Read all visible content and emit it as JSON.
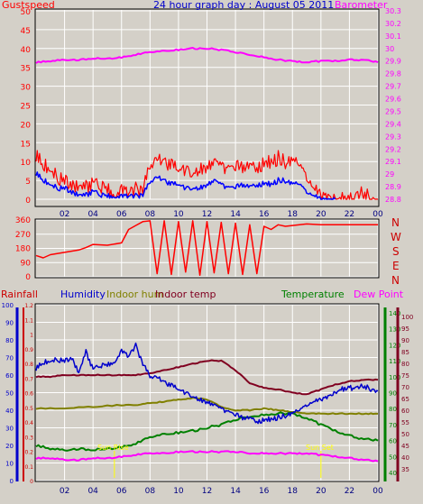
{
  "colors": {
    "background": "#d4d0c8",
    "panel_border": "#000000",
    "grid": "#ffffff",
    "gust": "#ff0000",
    "wind_avg": "#0000ff",
    "barometer": "#ff00ff",
    "direction": "#ff0000",
    "rainfall": "#cc0000",
    "humidity": "#0000cc",
    "indoor_hum": "#808000",
    "indoor_temp": "#800020",
    "temperature": "#008000",
    "dew_point": "#ff00ff",
    "sun": "#ffff00"
  },
  "chart_data": [
    {
      "type": "line",
      "panel": "wind-barometer",
      "title": "24 hour graph day : August 05 2011",
      "left_label": "Gustspeed",
      "right_label": "Barometer",
      "x_ticks": [
        "02",
        "04",
        "06",
        "08",
        "10",
        "12",
        "14",
        "16",
        "18",
        "20",
        "22",
        "00"
      ],
      "left_ticks": [
        "0",
        "5",
        "10",
        "15",
        "20",
        "25",
        "30",
        "35",
        "40",
        "45",
        "50"
      ],
      "right_ticks": [
        "28.8",
        "28.9",
        "29",
        "29.1",
        "29.2",
        "29.3",
        "29.4",
        "29.5",
        "29.6",
        "29.7",
        "29.8",
        "29.9",
        "30",
        "30.1",
        "30.2",
        "30.3"
      ],
      "ylim_left": [
        0,
        50
      ],
      "ylim_right": [
        28.8,
        30.3
      ],
      "series": [
        {
          "key": "gust",
          "axis": "left",
          "x": [
            0,
            0.5,
            1,
            1.5,
            2,
            2.5,
            3,
            3.5,
            4,
            4.5,
            5,
            5.5,
            6,
            6.5,
            7,
            7.5,
            8,
            8.5,
            9,
            9.5,
            10,
            10.5,
            11,
            11.5,
            12,
            12.5,
            13,
            13.5,
            14,
            14.5,
            15,
            15.5,
            16,
            16.5,
            17,
            17.5,
            18,
            18.5,
            19,
            19.5,
            20,
            20.5,
            21,
            21.5,
            22,
            22.5,
            23,
            23.5,
            24
          ],
          "values": [
            12,
            9,
            8,
            6,
            5,
            4,
            3,
            3,
            4,
            3,
            3,
            2,
            3,
            2,
            3,
            2,
            10,
            11,
            10,
            9,
            8,
            8,
            7,
            8,
            9,
            10,
            9,
            8,
            8,
            9,
            8,
            9,
            9,
            10,
            11,
            10,
            10,
            9,
            6,
            3,
            1,
            1,
            0,
            0,
            0,
            0,
            2,
            0,
            0
          ]
        },
        {
          "key": "wind_avg",
          "axis": "left",
          "x": [
            0,
            0.5,
            1,
            1.5,
            2,
            2.5,
            3,
            3.5,
            4,
            4.5,
            5,
            5.5,
            6,
            6.5,
            7,
            7.5,
            8,
            8.5,
            9,
            9.5,
            10,
            10.5,
            11,
            11.5,
            12,
            12.5,
            13,
            13.5,
            14,
            14.5,
            15,
            15.5,
            16,
            16.5,
            17,
            17.5,
            18,
            18.5,
            19,
            19.5,
            20,
            20.5,
            21
          ],
          "values": [
            7,
            5,
            4,
            3,
            3,
            2,
            1,
            1,
            2,
            1,
            1,
            1,
            1,
            1,
            1,
            1,
            5,
            6,
            5,
            4,
            4,
            3,
            3,
            3,
            4,
            5,
            4,
            3,
            3,
            4,
            3,
            4,
            4,
            4,
            5,
            5,
            4,
            4,
            2,
            1,
            0,
            0,
            0
          ]
        },
        {
          "key": "barometer",
          "axis": "right",
          "x": [
            0,
            1,
            2,
            3,
            4,
            5,
            6,
            7,
            8,
            9,
            10,
            11,
            12,
            13,
            14,
            15,
            16,
            17,
            18,
            19,
            20,
            21,
            22,
            23,
            24
          ],
          "values": [
            29.89,
            29.9,
            29.91,
            29.91,
            29.92,
            29.92,
            29.93,
            29.95,
            29.97,
            29.98,
            29.99,
            30.0,
            30.0,
            29.99,
            29.97,
            29.95,
            29.93,
            29.91,
            29.9,
            29.89,
            29.9,
            29.9,
            29.91,
            29.91,
            29.89
          ]
        }
      ]
    },
    {
      "type": "line",
      "panel": "wind-direction",
      "left_ticks": [
        "0",
        "90",
        "180",
        "270",
        "360"
      ],
      "compass_labels": [
        "N",
        "W",
        "S",
        "E",
        "N"
      ],
      "ylim": [
        0,
        360
      ],
      "series": [
        {
          "key": "direction",
          "x": [
            0,
            0.5,
            1,
            2,
            3,
            3.5,
            4,
            5,
            6,
            6.5,
            7,
            7.5,
            8,
            8.5,
            9,
            9.5,
            10,
            10.5,
            11,
            11.5,
            12,
            12.5,
            13,
            13.5,
            14,
            14.5,
            15,
            15.5,
            16,
            16.5,
            17,
            17.5,
            18,
            19,
            20,
            21,
            22,
            23,
            24
          ],
          "values": [
            135,
            120,
            140,
            155,
            170,
            185,
            205,
            200,
            215,
            300,
            325,
            350,
            355,
            20,
            355,
            15,
            350,
            30,
            355,
            10,
            350,
            25,
            345,
            20,
            340,
            15,
            330,
            20,
            320,
            300,
            330,
            320,
            325,
            335,
            330,
            330,
            330,
            330,
            330
          ]
        }
      ]
    },
    {
      "type": "line",
      "panel": "temperature-humidity",
      "labels": [
        "Rainfall",
        "Humidity",
        "Indoor hum",
        "Indoor temp",
        "Temperature",
        "Dew Point"
      ],
      "x_ticks": [
        "02",
        "04",
        "06",
        "08",
        "10",
        "12",
        "14",
        "16",
        "18",
        "20",
        "22",
        "00"
      ],
      "humidity_ticks": [
        "0",
        "10",
        "20",
        "30",
        "40",
        "50",
        "60",
        "70",
        "80",
        "90",
        "100"
      ],
      "rain_ticks": [
        "0",
        "0.1",
        "0.2",
        "0.3",
        "0.4",
        "0.5",
        "0.6",
        "0.7",
        "0.8",
        "0.9",
        "1",
        "1.1",
        "1.2"
      ],
      "temp_ticks": [
        "40",
        "50",
        "60",
        "70",
        "80",
        "90",
        "100",
        "110",
        "120",
        "130",
        "140"
      ],
      "right_ticks": [
        "35",
        "40",
        "45",
        "50",
        "55",
        "60",
        "65",
        "70",
        "75",
        "80",
        "85",
        "90",
        "95",
        "100"
      ],
      "sun_labels": [
        "Sun Rise",
        "Sun Set"
      ],
      "sun_times": [
        5.5,
        20.0
      ],
      "ylim_humidity": [
        0,
        100
      ],
      "ylim_temperature": [
        35,
        145
      ],
      "series": [
        {
          "key": "humidity",
          "axis": "humidity",
          "x": [
            0,
            0.5,
            1,
            1.5,
            2,
            2.5,
            3,
            3.5,
            4,
            4.5,
            5,
            5.5,
            6,
            6.5,
            7,
            7.5,
            8,
            8.5,
            9,
            9.5,
            10,
            10.5,
            11,
            11.5,
            12,
            12.5,
            13,
            13.5,
            14,
            14.5,
            15,
            15.5,
            16,
            16.5,
            17,
            17.5,
            18,
            18.5,
            19,
            19.5,
            20,
            20.5,
            21,
            21.5,
            22,
            22.5,
            23,
            23.5,
            24
          ],
          "values": [
            64,
            67,
            68,
            69,
            68,
            70,
            61,
            73,
            63,
            65,
            66,
            68,
            74,
            71,
            77,
            66,
            60,
            59,
            56,
            54,
            52,
            50,
            48,
            46,
            45,
            43,
            41,
            39,
            37,
            36,
            35,
            34,
            34,
            35,
            36,
            37,
            38,
            40,
            43,
            45,
            46,
            48,
            50,
            52,
            53,
            52,
            54,
            52,
            51
          ]
        },
        {
          "key": "indoor_hum",
          "axis": "humidity",
          "x": [
            0,
            2,
            4,
            6,
            7,
            8,
            9,
            10,
            11,
            12,
            13,
            14,
            15,
            16,
            17,
            18,
            19,
            20,
            21,
            22,
            23,
            24
          ],
          "values": [
            41,
            41,
            42,
            43,
            43,
            44,
            45,
            46,
            47,
            46,
            42,
            40,
            40,
            41,
            40,
            39,
            38,
            38,
            38,
            38,
            38,
            38
          ]
        },
        {
          "key": "temperature",
          "axis": "temperature",
          "x": [
            0,
            1,
            2,
            3,
            4,
            5,
            6,
            7,
            8,
            9,
            10,
            11,
            12,
            13,
            14,
            15,
            16,
            17,
            18,
            19,
            20,
            21,
            22,
            23,
            24
          ],
          "values": [
            57,
            55,
            54,
            55,
            54,
            55,
            56,
            58,
            62,
            64,
            65,
            66,
            68,
            70,
            73,
            75,
            76,
            77,
            77,
            74,
            70,
            66,
            63,
            61,
            60
          ]
        },
        {
          "key": "indoor_temp",
          "axis": "temperature",
          "x": [
            0,
            1,
            2,
            3,
            4,
            5,
            6,
            7,
            8,
            9,
            10,
            11,
            12,
            13,
            14,
            15,
            16,
            17,
            18,
            19,
            20,
            21,
            22,
            23,
            24
          ],
          "values": [
            100,
            100,
            101,
            101,
            101,
            101,
            101,
            101,
            102,
            104,
            106,
            108,
            110,
            110,
            104,
            96,
            93,
            92,
            90,
            89,
            92,
            95,
            97,
            98,
            98
          ]
        },
        {
          "key": "dew_point",
          "axis": "temperature",
          "x": [
            0,
            1,
            2,
            3,
            4,
            5,
            6,
            7,
            8,
            9,
            10,
            11,
            12,
            13,
            14,
            15,
            16,
            17,
            18,
            19,
            20,
            21,
            22,
            23,
            24
          ],
          "values": [
            49,
            49,
            48,
            48,
            49,
            49,
            50,
            51,
            52,
            52,
            53,
            53,
            53,
            53,
            53,
            52,
            52,
            52,
            52,
            52,
            51,
            50,
            49,
            48,
            47
          ]
        }
      ]
    }
  ]
}
